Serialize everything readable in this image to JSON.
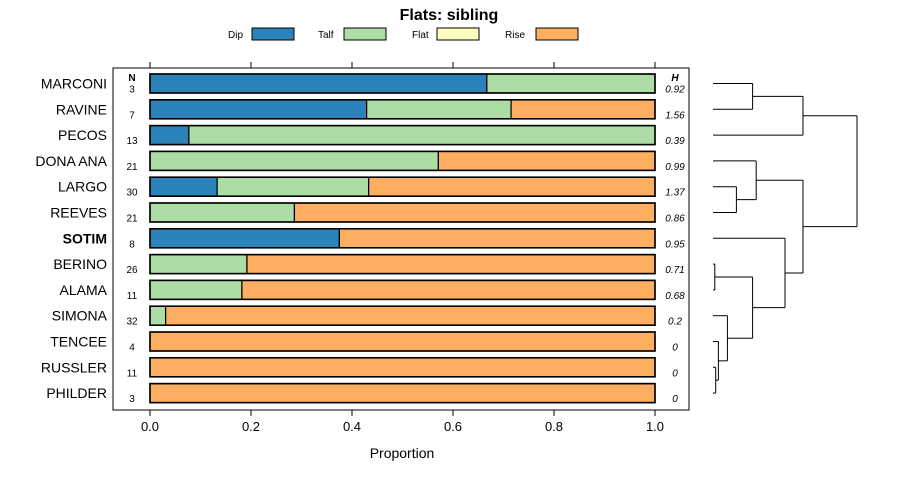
{
  "chart_data": {
    "type": "bar",
    "orientation": "horizontal",
    "stacked": true,
    "title": "Flats: sibling",
    "xlabel": "Proportion",
    "ylabel": "",
    "xlim": [
      -0.04,
      1.07
    ],
    "xticks": [
      0.0,
      0.2,
      0.4,
      0.6,
      0.8,
      1.0
    ],
    "xtick_labels": [
      "0.0",
      "0.2",
      "0.4",
      "0.6",
      "0.8",
      "1.0"
    ],
    "n_header": "N",
    "h_header": "H",
    "legend": {
      "placement": "top",
      "entries": [
        {
          "name": "Dip",
          "color": "#2b83ba"
        },
        {
          "name": "Talf",
          "color": "#abdda4"
        },
        {
          "name": "Flat",
          "color": "#ffffbf"
        },
        {
          "name": "Rise",
          "color": "#fdae61"
        }
      ]
    },
    "categories": [
      "MARCONI",
      "RAVINE",
      "PECOS",
      "DONA ANA",
      "LARGO",
      "REEVES",
      "SOTIM",
      "BERINO",
      "ALAMA",
      "SIMONA",
      "TENCEE",
      "RUSSLER",
      "PHILDER"
    ],
    "highlighted": "SOTIM",
    "n": [
      "3",
      "7",
      "13",
      "21",
      "30",
      "21",
      "8",
      "26",
      "11",
      "32",
      "4",
      "11",
      "3"
    ],
    "h": [
      "0.92",
      "1.56",
      "0.39",
      "0.99",
      "1.37",
      "0.86",
      "0.95",
      "0.71",
      "0.68",
      "0.2",
      "0",
      "0",
      "0"
    ],
    "series": [
      {
        "name": "Dip",
        "values": [
          0.667,
          0.429,
          0.077,
          0.0,
          0.133,
          0.0,
          0.375,
          0.0,
          0.0,
          0.0,
          0.0,
          0.0,
          0.0
        ]
      },
      {
        "name": "Talf",
        "values": [
          0.333,
          0.286,
          0.923,
          0.571,
          0.3,
          0.286,
          0.0,
          0.192,
          0.182,
          0.031,
          0.0,
          0.0,
          0.0
        ]
      },
      {
        "name": "Flat",
        "values": [
          0.0,
          0.0,
          0.0,
          0.0,
          0.0,
          0.0,
          0.0,
          0.0,
          0.0,
          0.0,
          0.0,
          0.0,
          0.0
        ]
      },
      {
        "name": "Rise",
        "values": [
          0.0,
          0.285,
          0.0,
          0.429,
          0.567,
          0.714,
          0.625,
          0.808,
          0.818,
          0.969,
          1.0,
          1.0,
          1.0
        ]
      }
    ],
    "dendrogram": {
      "merges": [
        [
          11,
          12,
          0.015
        ],
        [
          10,
          -1,
          0.03
        ],
        [
          7,
          8,
          0.01
        ],
        [
          9,
          -2,
          0.08
        ],
        [
          -3,
          -4,
          0.22
        ],
        [
          6,
          -5,
          0.4
        ],
        [
          4,
          5,
          0.13
        ],
        [
          3,
          -7,
          0.24
        ],
        [
          0,
          1,
          0.22
        ],
        [
          2,
          -9,
          0.5
        ],
        [
          -8,
          -6,
          0.5
        ],
        [
          -10,
          -11,
          0.8
        ]
      ]
    }
  }
}
